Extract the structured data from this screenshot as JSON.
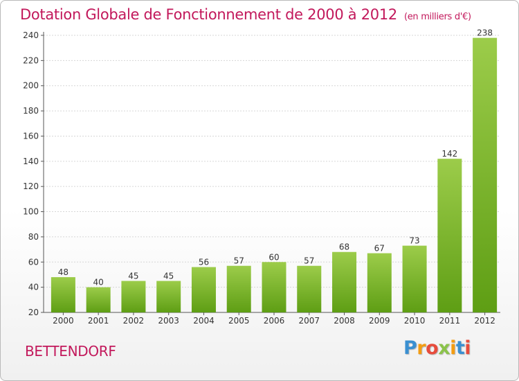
{
  "title": "Dotation Globale de Fonctionnement de 2000 à 2012",
  "unit_label": "(en milliers d'€)",
  "commune": "BETTENDORF",
  "logo": {
    "letters": [
      "P",
      "r",
      "o",
      "x",
      "i",
      "t",
      "i"
    ],
    "colors": [
      "#3a8fd1",
      "#f39c12",
      "#e74c3c",
      "#8bc34a",
      "#f39c12",
      "#3a8fd1",
      "#e74c3c"
    ]
  },
  "colors": {
    "bar_top": "#9ccc4a",
    "bar_bottom": "#5e9e14",
    "title": "#c2185b"
  },
  "chart_data": {
    "type": "bar",
    "categories": [
      "2000",
      "2001",
      "2002",
      "2003",
      "2004",
      "2005",
      "2006",
      "2007",
      "2008",
      "2009",
      "2010",
      "2011",
      "2012"
    ],
    "values": [
      48,
      40,
      45,
      45,
      56,
      57,
      60,
      57,
      68,
      67,
      73,
      142,
      238
    ],
    "ylim": [
      20,
      240
    ],
    "yticks": [
      20,
      40,
      60,
      80,
      100,
      120,
      140,
      160,
      180,
      200,
      220,
      240
    ],
    "grid": true,
    "data_labels": true
  }
}
